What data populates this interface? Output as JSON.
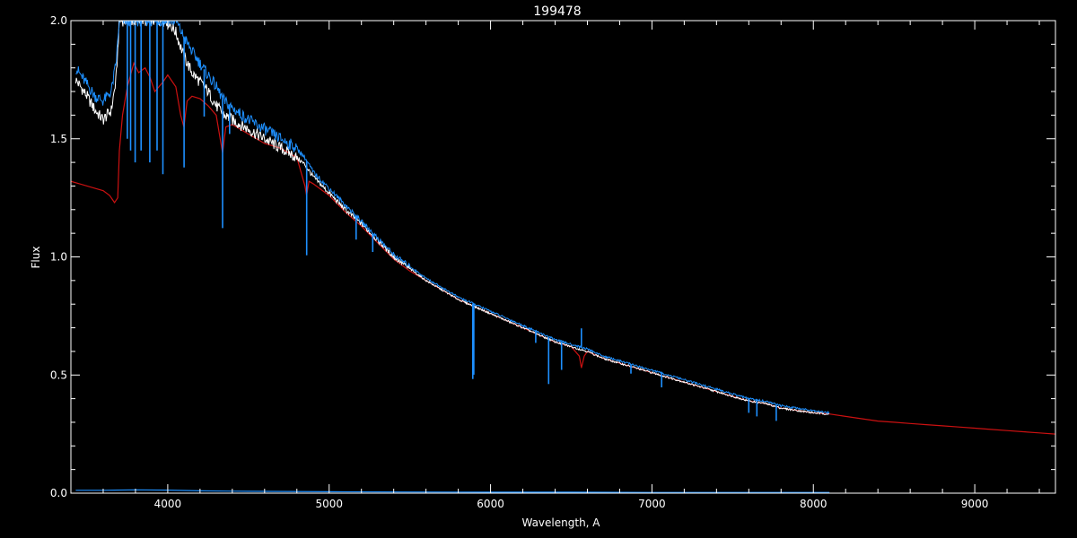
{
  "chart_data": {
    "type": "line",
    "title": "199478",
    "xlabel": "Wavelength, A",
    "ylabel": "Flux",
    "xlim": [
      3400,
      9500
    ],
    "ylim": [
      0,
      2.0
    ],
    "x_ticks": [
      4000,
      5000,
      6000,
      7000,
      8000,
      9000
    ],
    "x_tick_labels": [
      "4000",
      "5000",
      "6000",
      "7000",
      "8000",
      "9000"
    ],
    "y_ticks": [
      0,
      0.5,
      1.0,
      1.5,
      2.0
    ],
    "y_tick_labels": [
      "0.0",
      "0.5",
      "1.0",
      "1.5",
      "2.0"
    ],
    "x_minor_step": 200,
    "y_minor_step": 0.1,
    "grid": false,
    "background": "#000000",
    "foreground": "#ffffff",
    "series": [
      {
        "key": "observed-white",
        "color": "#ffffff",
        "x": [
          3430,
          3460,
          3500,
          3550,
          3600,
          3650,
          3680,
          3700,
          3720,
          3750,
          3800,
          3850,
          3900,
          3950,
          4000,
          4050,
          4100,
          4150,
          4200,
          4250,
          4300,
          4350,
          4400,
          4500,
          4600,
          4700,
          4800,
          4850,
          4900,
          5000,
          5100,
          5200,
          5300,
          5400,
          5500,
          5600,
          5700,
          5800,
          5900,
          6000,
          6100,
          6200,
          6300,
          6400,
          6500,
          6600,
          6700,
          6800,
          6900,
          7000,
          7100,
          7200,
          7300,
          7400,
          7500,
          7600,
          7700,
          7800,
          7900,
          8000,
          8100
        ],
        "y": [
          1.75,
          1.72,
          1.68,
          1.62,
          1.58,
          1.62,
          1.75,
          2.0,
          2.0,
          2.0,
          2.0,
          2.0,
          2.0,
          2.0,
          2.0,
          1.95,
          1.85,
          1.78,
          1.74,
          1.7,
          1.64,
          1.6,
          1.58,
          1.54,
          1.5,
          1.46,
          1.42,
          1.39,
          1.34,
          1.27,
          1.2,
          1.14,
          1.07,
          1.0,
          0.95,
          0.9,
          0.86,
          0.82,
          0.79,
          0.76,
          0.73,
          0.7,
          0.67,
          0.64,
          0.62,
          0.6,
          0.57,
          0.55,
          0.53,
          0.51,
          0.49,
          0.47,
          0.45,
          0.43,
          0.41,
          0.39,
          0.38,
          0.36,
          0.35,
          0.34,
          0.335
        ]
      },
      {
        "key": "observed-blue",
        "color": "#1e90ff",
        "x": [
          3430,
          3460,
          3500,
          3550,
          3600,
          3650,
          3680,
          3700,
          3720,
          3750,
          3800,
          3850,
          3900,
          3950,
          4000,
          4050,
          4100,
          4150,
          4200,
          4250,
          4300,
          4350,
          4400,
          4500,
          4600,
          4700,
          4800,
          4850,
          4900,
          5000,
          5100,
          5200,
          5300,
          5400,
          5500,
          5600,
          5700,
          5800,
          5900,
          6000,
          6100,
          6200,
          6300,
          6400,
          6500,
          6600,
          6700,
          6800,
          6900,
          7000,
          7100,
          7200,
          7300,
          7400,
          7500,
          7600,
          7700,
          7800,
          7900,
          8000,
          8100
        ],
        "y": [
          1.8,
          1.77,
          1.73,
          1.68,
          1.66,
          1.7,
          1.82,
          2.0,
          2.0,
          2.0,
          2.0,
          2.0,
          2.0,
          2.0,
          2.0,
          2.0,
          1.93,
          1.87,
          1.82,
          1.77,
          1.72,
          1.66,
          1.63,
          1.58,
          1.54,
          1.5,
          1.46,
          1.42,
          1.36,
          1.29,
          1.22,
          1.15,
          1.08,
          1.01,
          0.96,
          0.91,
          0.87,
          0.83,
          0.8,
          0.77,
          0.74,
          0.71,
          0.68,
          0.65,
          0.63,
          0.61,
          0.58,
          0.56,
          0.54,
          0.52,
          0.5,
          0.48,
          0.46,
          0.44,
          0.42,
          0.4,
          0.39,
          0.37,
          0.36,
          0.35,
          0.34
        ]
      },
      {
        "key": "model-red",
        "color": "#cc1111",
        "x": [
          3400,
          3450,
          3500,
          3550,
          3600,
          3640,
          3670,
          3690,
          3700,
          3720,
          3750,
          3790,
          3820,
          3860,
          3890,
          3920,
          3970,
          4000,
          4050,
          4080,
          4100,
          4120,
          4150,
          4200,
          4250,
          4300,
          4330,
          4340,
          4360,
          4400,
          4500,
          4600,
          4700,
          4800,
          4850,
          4860,
          4875,
          4900,
          5000,
          5100,
          5200,
          5300,
          5400,
          5500,
          5600,
          5700,
          5800,
          5900,
          6000,
          6100,
          6200,
          6300,
          6400,
          6500,
          6550,
          6563,
          6580,
          6600,
          6700,
          6800,
          6900,
          7000,
          7100,
          7200,
          7300,
          7400,
          7500,
          7600,
          7700,
          7800,
          7900,
          8000,
          8100,
          8200,
          8300,
          8400,
          8500,
          8600,
          8700,
          8800,
          8900,
          9000,
          9100,
          9200,
          9300,
          9400,
          9500
        ],
        "y": [
          1.32,
          1.31,
          1.3,
          1.29,
          1.28,
          1.26,
          1.23,
          1.25,
          1.45,
          1.6,
          1.72,
          1.82,
          1.78,
          1.8,
          1.76,
          1.7,
          1.74,
          1.77,
          1.72,
          1.6,
          1.55,
          1.66,
          1.68,
          1.67,
          1.64,
          1.6,
          1.48,
          1.44,
          1.55,
          1.56,
          1.52,
          1.48,
          1.46,
          1.42,
          1.3,
          1.26,
          1.32,
          1.31,
          1.26,
          1.19,
          1.13,
          1.06,
          0.99,
          0.94,
          0.9,
          0.86,
          0.82,
          0.79,
          0.76,
          0.73,
          0.7,
          0.67,
          0.64,
          0.62,
          0.58,
          0.53,
          0.58,
          0.6,
          0.57,
          0.55,
          0.53,
          0.51,
          0.49,
          0.47,
          0.45,
          0.43,
          0.41,
          0.39,
          0.38,
          0.36,
          0.35,
          0.34,
          0.335,
          0.325,
          0.315,
          0.305,
          0.3,
          0.295,
          0.29,
          0.285,
          0.28,
          0.275,
          0.27,
          0.265,
          0.26,
          0.255,
          0.25
        ]
      },
      {
        "key": "error-blue",
        "color": "#1e90ff",
        "x": [
          3430,
          3600,
          3800,
          4000,
          4200,
          4500,
          5000,
          5500,
          6000,
          6500,
          7000,
          7500,
          8100
        ],
        "y": [
          0.012,
          0.012,
          0.014,
          0.013,
          0.01,
          0.008,
          0.006,
          0.005,
          0.004,
          0.004,
          0.003,
          0.003,
          0.003
        ]
      }
    ],
    "absorption_lines": [
      {
        "x": 3750,
        "depth": 0.5
      },
      {
        "x": 3770,
        "depth": 0.55
      },
      {
        "x": 3798,
        "depth": 0.6
      },
      {
        "x": 3835,
        "depth": 0.55
      },
      {
        "x": 3889,
        "depth": 0.6
      },
      {
        "x": 3934,
        "depth": 0.55
      },
      {
        "x": 3970,
        "depth": 0.65
      },
      {
        "x": 4101,
        "depth": 0.55
      },
      {
        "x": 4226,
        "depth": 0.2
      },
      {
        "x": 4340,
        "depth": 0.55
      },
      {
        "x": 4383,
        "depth": 0.12
      },
      {
        "x": 4861,
        "depth": 0.4
      },
      {
        "x": 5167,
        "depth": 0.1
      },
      {
        "x": 5270,
        "depth": 0.08
      },
      {
        "x": 5890,
        "depth": 0.32
      },
      {
        "x": 5896,
        "depth": 0.3
      },
      {
        "x": 6280,
        "depth": 0.05
      },
      {
        "x": 6360,
        "depth": 0.2
      },
      {
        "x": 6440,
        "depth": 0.12
      },
      {
        "x": 6870,
        "depth": 0.04
      },
      {
        "x": 7060,
        "depth": 0.06
      },
      {
        "x": 7600,
        "depth": 0.06
      },
      {
        "x": 7650,
        "depth": 0.07
      },
      {
        "x": 7770,
        "depth": 0.07
      }
    ],
    "emission_lines": [
      {
        "x": 6563,
        "height": 0.08
      }
    ]
  }
}
